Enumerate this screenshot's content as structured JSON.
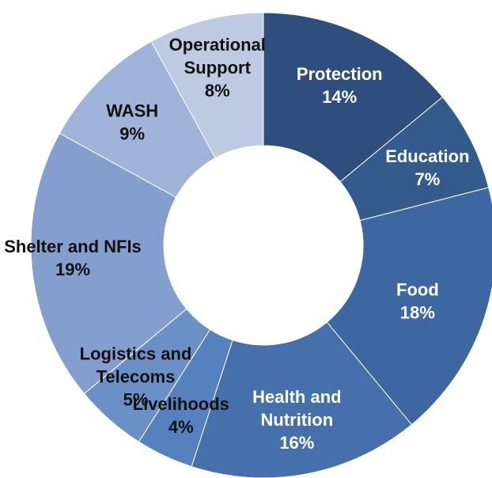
{
  "chart_data": {
    "type": "pie",
    "title": "",
    "slices": [
      {
        "name": "Protection",
        "value": 14,
        "label_lines": [
          "Protection",
          "14%"
        ],
        "color": "#2e4f7d",
        "label_color": "#ffffff"
      },
      {
        "name": "Education",
        "value": 7,
        "label_lines": [
          "Education",
          "7%"
        ],
        "color": "#355a8c",
        "label_color": "#ffffff"
      },
      {
        "name": "Food",
        "value": 18,
        "label_lines": [
          "Food",
          "18%"
        ],
        "color": "#3d67a0",
        "label_color": "#ffffff"
      },
      {
        "name": "Health and Nutrition",
        "value": 16,
        "label_lines": [
          "Health and",
          "Nutrition",
          "16%"
        ],
        "color": "#4670ab",
        "label_color": "#ffffff"
      },
      {
        "name": "Livelihoods",
        "value": 4,
        "label_lines": [
          "Livelihoods",
          "4%"
        ],
        "color": "#5582bf",
        "label_color": "#111111"
      },
      {
        "name": "Logistics and Telecoms",
        "value": 5,
        "label_lines": [
          "Logistics and",
          "Telecoms",
          "5%"
        ],
        "color": "#6a90c6",
        "label_color": "#111111"
      },
      {
        "name": "Shelter and NFIs",
        "value": 19,
        "label_lines": [
          "Shelter and NFIs",
          "19%"
        ],
        "color": "#849fcd",
        "label_color": "#111111"
      },
      {
        "name": "WASH",
        "value": 9,
        "label_lines": [
          "WASH",
          "9%"
        ],
        "color": "#a0b3d8",
        "label_color": "#111111"
      },
      {
        "name": "Operational Support",
        "value": 8,
        "label_lines": [
          "Operational",
          "Support",
          "8%"
        ],
        "color": "#bdcae2",
        "label_color": "#111111"
      }
    ],
    "legend": "none",
    "hole": true
  }
}
